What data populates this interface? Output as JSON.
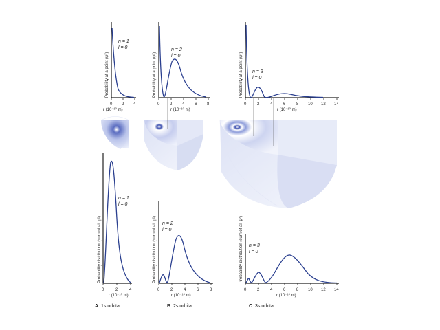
{
  "panels": {
    "A": {
      "caption_letter": "A",
      "caption_text": "1s orbital",
      "top": {
        "ylabel": "Probability at a point (ψ²)",
        "xlabel": "r (10⁻¹⁰ m)",
        "ticks": [
          "0",
          "2",
          "4"
        ],
        "n_label": "n = 1",
        "l_label": "l = 0"
      },
      "bottom": {
        "ylabel": "Probability distribution (sum of all ψ²)",
        "xlabel": "r (10⁻¹⁰ m)",
        "ticks": [
          "0",
          "2",
          "4"
        ],
        "n_label": "n = 1",
        "l_label": "l = 0"
      }
    },
    "B": {
      "caption_letter": "B",
      "caption_text": "2s orbital",
      "top": {
        "ylabel": "Probability at a point (ψ²)",
        "xlabel": "r (10⁻¹⁰ m)",
        "ticks": [
          "0",
          "2",
          "4",
          "6",
          "8"
        ],
        "n_label": "n = 2",
        "l_label": "l = 0"
      },
      "bottom": {
        "ylabel": "Probability distribution (sum of all ψ²)",
        "xlabel": "r (10⁻¹⁰ m)",
        "ticks": [
          "0",
          "2",
          "4",
          "6",
          "8"
        ],
        "n_label": "n = 2",
        "l_label": "l = 0"
      }
    },
    "C": {
      "caption_letter": "C",
      "caption_text": "3s orbital",
      "top": {
        "ylabel": "Probability at a point (ψ²)",
        "xlabel": "r (10⁻¹⁰ m)",
        "ticks": [
          "0",
          "2",
          "4",
          "6",
          "8",
          "10",
          "12",
          "14"
        ],
        "n_label": "n = 3",
        "l_label": "l = 0"
      },
      "bottom": {
        "ylabel": "Probability distribution (sum of all ψ²)",
        "xlabel": "r (10⁻¹⁰ m)",
        "ticks": [
          "0",
          "2",
          "4",
          "6",
          "8",
          "10",
          "12",
          "14"
        ],
        "n_label": "n = 3",
        "l_label": "l = 0"
      }
    }
  },
  "colors": {
    "curve": "#2a3f8f",
    "orbital_light": "#eef1fb",
    "orbital_dark": "#6f80c8",
    "axis": "#222222"
  }
}
